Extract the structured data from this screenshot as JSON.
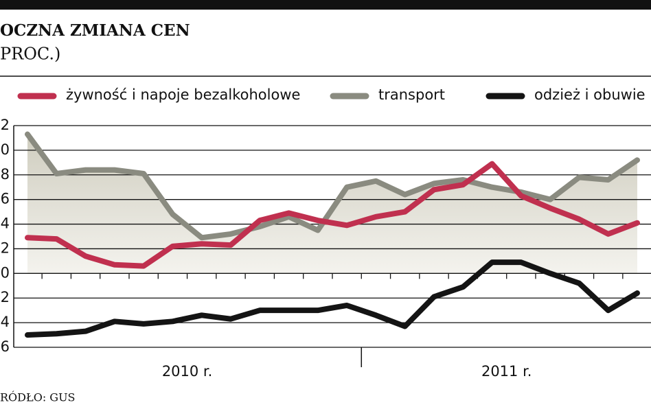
{
  "chart_data": {
    "type": "line",
    "title": "OCZNA ZMIANA CEN",
    "subtitle": "PROC.)",
    "source": "RÓDŁO: GUS",
    "categories": [
      null,
      null,
      null,
      null,
      null,
      null,
      null,
      null,
      null,
      null,
      null,
      null,
      null,
      null,
      null,
      null,
      null,
      null,
      null,
      null,
      null,
      null
    ],
    "groups": [
      {
        "label": "2010 r.",
        "count": 12
      },
      {
        "label": "2011 r.",
        "count": 10
      }
    ],
    "series": [
      {
        "name": "żywność i napoje bezalkoholowe",
        "color": "#c0304f",
        "values": [
          2.9,
          2.8,
          1.4,
          0.7,
          0.6,
          2.2,
          2.4,
          2.3,
          4.3,
          4.9,
          4.3,
          3.9,
          4.6,
          5.0,
          6.8,
          7.2,
          8.9,
          6.3,
          5.3,
          4.4,
          3.2,
          4.1
        ]
      },
      {
        "name": "transport",
        "color": "#8a8b80",
        "area": true,
        "values": [
          11.3,
          8.1,
          8.4,
          8.4,
          8.1,
          4.8,
          2.9,
          3.2,
          3.8,
          4.6,
          3.5,
          7.0,
          7.5,
          6.4,
          7.3,
          7.6,
          7.0,
          6.6,
          6.0,
          7.8,
          7.6,
          9.2
        ]
      },
      {
        "name": "odzież i obuwie",
        "color": "#141414",
        "values": [
          -5.0,
          -4.9,
          -4.7,
          -3.9,
          -4.1,
          -3.9,
          -3.4,
          -3.7,
          -3.0,
          -3.0,
          -3.0,
          -2.6,
          -3.4,
          -4.3,
          -1.9,
          -1.1,
          0.9,
          0.9,
          0.0,
          -0.8,
          -3.0,
          -1.6
        ]
      }
    ],
    "ylim": [
      -6,
      12
    ],
    "yticks": [
      {
        "value": -6,
        "label": "6"
      },
      {
        "value": -4,
        "label": "4"
      },
      {
        "value": -2,
        "label": "2"
      },
      0,
      {
        "value": 2,
        "label": "2"
      },
      {
        "value": 4,
        "label": "4"
      },
      {
        "value": 6,
        "label": "6"
      },
      {
        "value": 8,
        "label": "8"
      },
      {
        "value": 10,
        "label": "0"
      },
      {
        "value": 12,
        "label": "2"
      }
    ],
    "grid": true
  }
}
